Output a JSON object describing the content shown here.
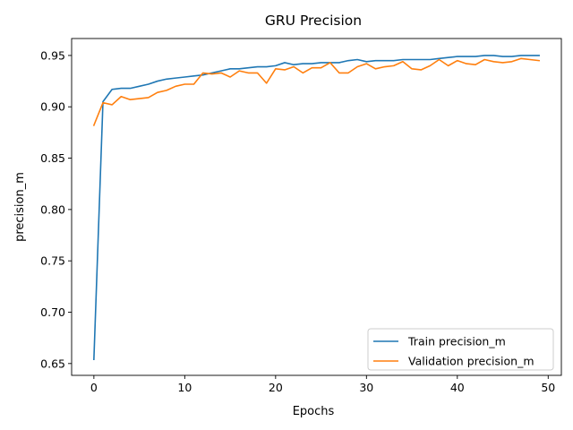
{
  "chart_data": {
    "type": "line",
    "title": "GRU Precision",
    "xlabel": "Epochs",
    "ylabel": "precision_m",
    "xlim": [
      -2.45,
      51.45
    ],
    "ylim": [
      0.6385,
      0.9665
    ],
    "xticks": [
      0,
      10,
      20,
      30,
      40,
      50
    ],
    "yticks": [
      0.65,
      0.7,
      0.75,
      0.8,
      0.85,
      0.9,
      0.95
    ],
    "ytick_labels": [
      "0.65",
      "0.70",
      "0.75",
      "0.80",
      "0.85",
      "0.90",
      "0.95"
    ],
    "grid": false,
    "legend_position": "lower-right",
    "x": [
      0,
      1,
      2,
      3,
      4,
      5,
      6,
      7,
      8,
      9,
      10,
      11,
      12,
      13,
      14,
      15,
      16,
      17,
      18,
      19,
      20,
      21,
      22,
      23,
      24,
      25,
      26,
      27,
      28,
      29,
      30,
      31,
      32,
      33,
      34,
      35,
      36,
      37,
      38,
      39,
      40,
      41,
      42,
      43,
      44,
      45,
      46,
      47,
      48,
      49
    ],
    "series": [
      {
        "name": "Train precision_m",
        "color": "#1f77b4",
        "values": [
          0.654,
          0.905,
          0.917,
          0.918,
          0.918,
          0.92,
          0.922,
          0.925,
          0.927,
          0.928,
          0.929,
          0.93,
          0.931,
          0.933,
          0.935,
          0.937,
          0.937,
          0.938,
          0.939,
          0.939,
          0.94,
          0.943,
          0.941,
          0.942,
          0.942,
          0.943,
          0.943,
          0.943,
          0.945,
          0.946,
          0.944,
          0.945,
          0.945,
          0.945,
          0.946,
          0.946,
          0.946,
          0.946,
          0.947,
          0.948,
          0.949,
          0.949,
          0.949,
          0.95,
          0.95,
          0.949,
          0.949,
          0.95,
          0.95,
          0.95
        ]
      },
      {
        "name": "Validation precision_m",
        "color": "#ff7f0e",
        "values": [
          0.882,
          0.904,
          0.902,
          0.91,
          0.907,
          0.908,
          0.909,
          0.914,
          0.916,
          0.92,
          0.922,
          0.922,
          0.933,
          0.932,
          0.933,
          0.929,
          0.935,
          0.933,
          0.933,
          0.923,
          0.937,
          0.936,
          0.939,
          0.933,
          0.938,
          0.938,
          0.943,
          0.933,
          0.933,
          0.939,
          0.942,
          0.937,
          0.939,
          0.94,
          0.944,
          0.937,
          0.936,
          0.94,
          0.946,
          0.94,
          0.945,
          0.942,
          0.941,
          0.946,
          0.944,
          0.943,
          0.944,
          0.947,
          0.946,
          0.945
        ]
      }
    ]
  }
}
